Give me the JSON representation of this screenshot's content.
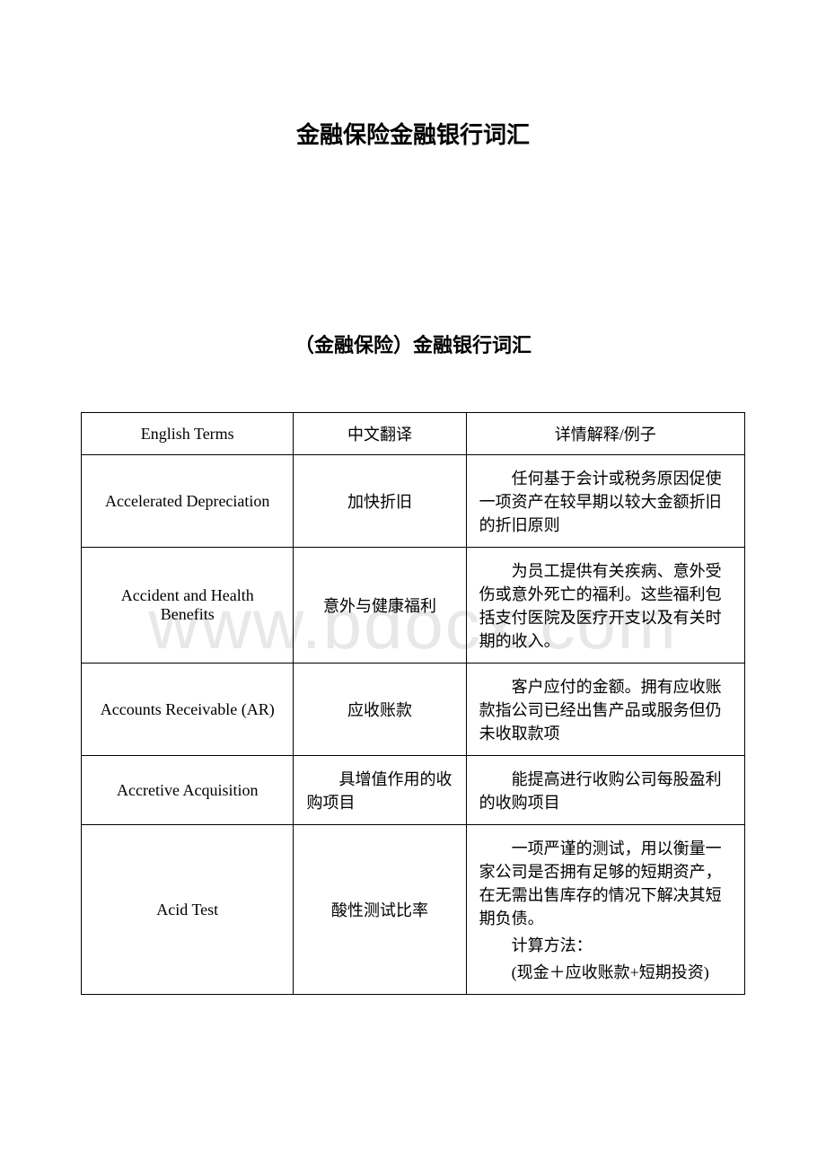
{
  "document": {
    "main_title": "金融保险金融银行词汇",
    "sub_title": "（金融保险）金融银行词汇",
    "watermark": "www.bdocx.com",
    "background_color": "#ffffff",
    "text_color": "#000000",
    "border_color": "#000000",
    "watermark_color": "#e8e8e8"
  },
  "table": {
    "columns": [
      {
        "key": "english",
        "label": "English Terms",
        "width": "32%",
        "align": "center"
      },
      {
        "key": "chinese",
        "label": "中文翻译",
        "width": "26%",
        "align": "center"
      },
      {
        "key": "detail",
        "label": "详情解释/例子",
        "width": "42%",
        "align": "left"
      }
    ],
    "rows": [
      {
        "english": "Accelerated Depreciation",
        "chinese": "加快折旧",
        "detail_paras": [
          "任何基于会计或税务原因促使一项资产在较早期以较大金额折旧的折旧原则"
        ]
      },
      {
        "english": "Accident and Health Benefits",
        "chinese": "意外与健康福利",
        "detail_paras": [
          "为员工提供有关疾病、意外受伤或意外死亡的福利。这些福利包括支付医院及医疗开支以及有关时期的收入。"
        ]
      },
      {
        "english": "Accounts Receivable (AR)",
        "chinese": "应收账款",
        "detail_paras": [
          "客户应付的金额。拥有应收账款指公司已经出售产品或服务但仍未收取款项"
        ]
      },
      {
        "english": "Accretive Acquisition",
        "chinese": "具增值作用的收购项目",
        "chinese_indented": true,
        "detail_paras": [
          "能提高进行收购公司每股盈利的收购项目"
        ]
      },
      {
        "english": "Acid Test",
        "chinese": "酸性测试比率",
        "detail_paras": [
          "一项严谨的测试，用以衡量一家公司是否拥有足够的短期资产，在无需出售库存的情况下解决其短期负债。",
          "计算方法：",
          "(现金＋应收账款+短期投资)"
        ]
      }
    ]
  }
}
